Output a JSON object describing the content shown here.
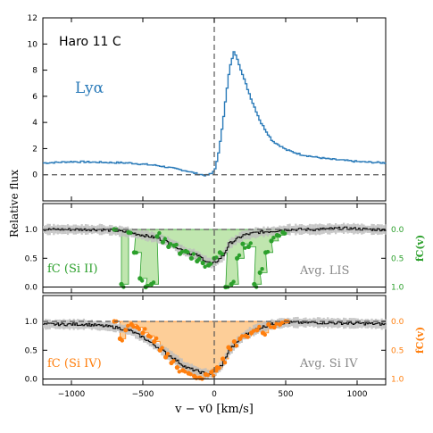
{
  "colors": {
    "lya": "#2b7bb9",
    "lis": "#2ca02c",
    "siiv": "#ff7f0e",
    "spec": "#000000",
    "err": "#bdbdbd",
    "lis_fill": "#b9e3a6",
    "siiv_fill": "#fdc98d"
  },
  "labels": {
    "object": "Haro 11 C",
    "lya": "Lyα",
    "ylabel": "Relative flux",
    "xlabel": "v − v0 [km/s]",
    "fc_lis": "fC (Si II)",
    "avg_lis": "Avg. LIS",
    "fc_siiv": "fC (Si IV)",
    "avg_siiv": "Avg. Si IV",
    "right_ylabel": "fC(v)"
  },
  "chart_data": [
    {
      "type": "line",
      "panel": "top",
      "title": "",
      "xlim": [
        -1200,
        1200
      ],
      "ylim": [
        -2,
        12
      ],
      "yticks": [
        "0",
        "2",
        "4",
        "6",
        "8",
        "10",
        "12"
      ],
      "series": [
        {
          "name": "Lyα",
          "x": [
            -1200,
            -1000,
            -800,
            -600,
            -400,
            -200,
            -120,
            -60,
            -20,
            0,
            20,
            60,
            100,
            130,
            150,
            170,
            200,
            260,
            320,
            400,
            500,
            600,
            700,
            800,
            900,
            1000,
            1100,
            1200
          ],
          "y": [
            0.9,
            1.0,
            0.95,
            0.9,
            0.7,
            0.3,
            0.05,
            -0.05,
            0.1,
            0.5,
            1.3,
            4.5,
            8.0,
            9.4,
            9.1,
            8.4,
            7.4,
            5.6,
            4.0,
            2.6,
            1.9,
            1.55,
            1.35,
            1.2,
            1.1,
            1.0,
            0.95,
            0.9
          ]
        }
      ]
    },
    {
      "type": "line",
      "panel": "middle",
      "xlim": [
        -1200,
        1200
      ],
      "ylim": [
        -0.1,
        1.45
      ],
      "yticks": [
        "0.0",
        "0.5",
        "1.0"
      ],
      "right_yticks": [
        "0.0",
        "0.5",
        "1.0"
      ],
      "series": [
        {
          "name": "Avg. LIS",
          "x": [
            -1200,
            -800,
            -700,
            -600,
            -500,
            -400,
            -300,
            -200,
            -120,
            -60,
            -20,
            0,
            60,
            100,
            200,
            300,
            400,
            500,
            700,
            900,
            1100,
            1200
          ],
          "y": [
            1.0,
            1.0,
            0.98,
            0.95,
            0.9,
            0.85,
            0.75,
            0.6,
            0.55,
            0.45,
            0.4,
            0.42,
            0.55,
            0.75,
            0.9,
            0.95,
            0.97,
            1.0,
            1.0,
            1.02,
            1.0,
            1.0
          ]
        },
        {
          "name": "fC (Si II)",
          "x": [
            -700,
            -650,
            -600,
            -560,
            -520,
            -480,
            -440,
            -400,
            -360,
            -320,
            -280,
            -240,
            -200,
            -160,
            -120,
            -80,
            -40,
            0,
            40,
            80,
            120,
            160,
            200,
            240,
            280,
            320,
            360,
            400,
            440,
            480
          ],
          "y": [
            0.0,
            0.95,
            0.05,
            0.4,
            0.85,
            1.0,
            0.95,
            0.12,
            0.22,
            0.3,
            0.28,
            0.42,
            0.38,
            0.5,
            0.55,
            0.58,
            0.62,
            0.5,
            0.4,
            1.0,
            0.95,
            0.5,
            0.25,
            0.3,
            0.95,
            0.75,
            0.4,
            0.2,
            0.1,
            0.05
          ]
        }
      ]
    },
    {
      "type": "line",
      "panel": "bottom",
      "xlim": [
        -1200,
        1200
      ],
      "ylim": [
        -0.1,
        1.45
      ],
      "yticks": [
        "0.0",
        "0.5",
        "1.0"
      ],
      "right_yticks": [
        "0.0",
        "0.5",
        "1.0"
      ],
      "series": [
        {
          "name": "Avg. Si IV",
          "x": [
            -1200,
            -900,
            -700,
            -600,
            -500,
            -400,
            -300,
            -200,
            -100,
            -50,
            0,
            50,
            100,
            200,
            300,
            400,
            500,
            700,
            900,
            1100,
            1200
          ],
          "y": [
            0.95,
            0.95,
            0.9,
            0.85,
            0.72,
            0.55,
            0.38,
            0.2,
            0.12,
            0.08,
            0.12,
            0.25,
            0.5,
            0.75,
            0.88,
            0.95,
            0.98,
            0.98,
            0.97,
            0.96,
            0.95
          ]
        },
        {
          "name": "fC (Si IV)",
          "x": [
            -700,
            -660,
            -620,
            -580,
            -540,
            -500,
            -460,
            -420,
            -380,
            -340,
            -300,
            -260,
            -220,
            -180,
            -140,
            -100,
            -60,
            -20,
            0,
            20,
            60,
            100,
            140,
            180,
            220,
            260,
            300,
            340,
            380,
            420,
            460,
            500
          ],
          "y": [
            0.0,
            0.3,
            0.15,
            0.05,
            0.1,
            0.2,
            0.25,
            0.35,
            0.5,
            0.62,
            0.72,
            0.8,
            0.85,
            0.9,
            0.95,
            0.98,
            0.92,
            0.88,
            0.85,
            0.8,
            0.65,
            0.45,
            0.35,
            0.3,
            0.25,
            0.2,
            0.15,
            0.2,
            0.05,
            0.1,
            0.05,
            0.0
          ]
        }
      ]
    }
  ],
  "xticks": [
    "−1000",
    "−500",
    "0",
    "500",
    "1000"
  ]
}
